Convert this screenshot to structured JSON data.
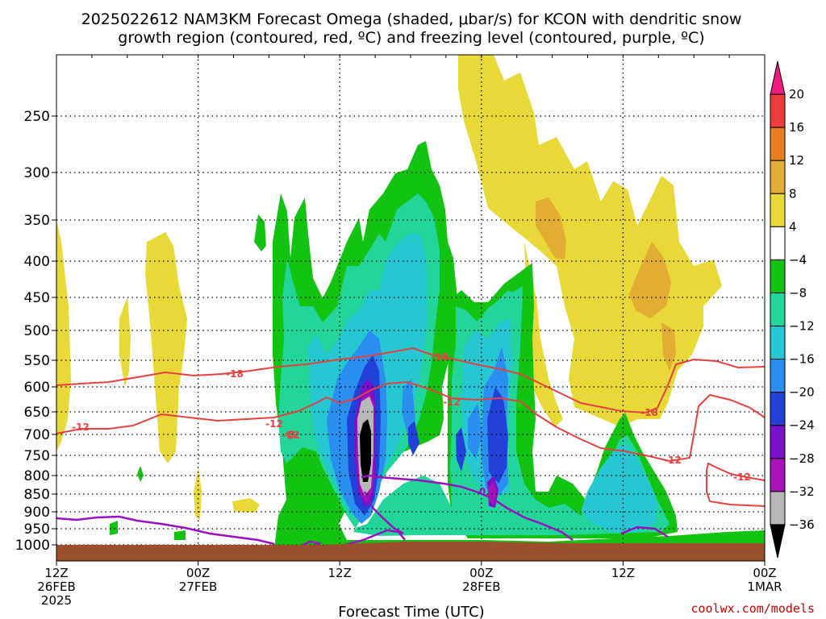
{
  "chart_data": {
    "type": "heatmap",
    "title_line1": "2025022612 NAM3KM Forecast Omega (shaded, μbar/s) for KCON with dendritic snow",
    "title_line2": "growth region (contoured, red, ºC) and freezing level (contoured, purple, ºC)",
    "xlabel": "Forecast Time (UTC)",
    "ylabel": "",
    "x_ticks": [
      {
        "l1": "12Z",
        "l2": "26FEB",
        "l3": "2025"
      },
      {
        "l1": "00Z",
        "l2": "27FEB",
        "l3": ""
      },
      {
        "l1": "12Z",
        "l2": "",
        "l3": ""
      },
      {
        "l1": "00Z",
        "l2": "28FEB",
        "l3": ""
      },
      {
        "l1": "12Z",
        "l2": "",
        "l3": ""
      },
      {
        "l1": "00Z",
        "l2": "1MAR",
        "l3": ""
      }
    ],
    "y_levels": [
      "250",
      "300",
      "350",
      "400",
      "450",
      "500",
      "550",
      "600",
      "650",
      "700",
      "750",
      "800",
      "850",
      "900",
      "950",
      "1000"
    ],
    "colorbar": {
      "labels": [
        "20",
        "16",
        "12",
        "8",
        "4",
        "−4",
        "−8",
        "−12",
        "−16",
        "−20",
        "−24",
        "−28",
        "−32",
        "−36"
      ],
      "colors": [
        "#ee1b7e",
        "#ee3b3b",
        "#e77f22",
        "#e3ac35",
        "#e8d838",
        "#ffffff",
        "#12c312",
        "#22d59a",
        "#24c7d2",
        "#2a8fef",
        "#2141d9",
        "#7a10c9",
        "#a613b9",
        "#b8b8b8",
        "#000000"
      ]
    },
    "contour_labels": {
      "red": [
        "-18",
        "-12",
        "-12",
        "-18",
        "-12",
        "-18",
        "-12",
        "-12",
        "-12"
      ],
      "purple": [
        "0"
      ]
    },
    "omega_regions": [
      {
        "level": "4",
        "color": "#e8d838"
      },
      {
        "level": "8",
        "color": "#e3ac35"
      },
      {
        "level": "-4",
        "color": "#12c312"
      },
      {
        "level": "-8",
        "color": "#22d59a"
      },
      {
        "level": "-12",
        "color": "#24c7d2"
      },
      {
        "level": "-16",
        "color": "#2a8fef"
      },
      {
        "level": "-20",
        "color": "#2141d9"
      },
      {
        "level": "-24",
        "color": "#7a10c9"
      },
      {
        "level": "-28",
        "color": "#a613b9"
      },
      {
        "level": "-32",
        "color": "#b8b8b8"
      },
      {
        "level": "-36",
        "color": "#000000"
      }
    ],
    "ground_color": "#9c4f2b",
    "grid": true
  },
  "credit": "coolwx.com/models"
}
